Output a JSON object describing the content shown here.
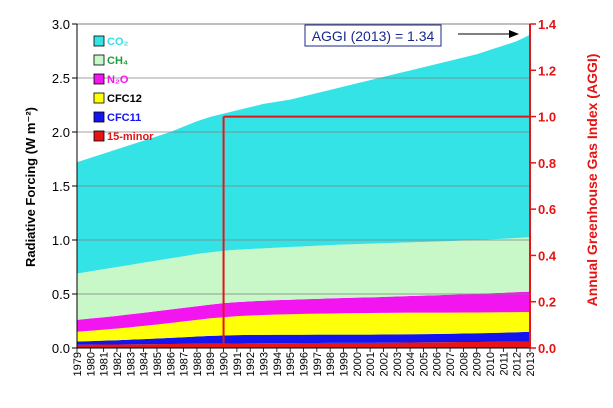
{
  "chart_data": {
    "type": "area",
    "stacked": true,
    "xlabel": "",
    "ylabel": "Radiative Forcing (W m⁻²)",
    "ylabel_right": "Annual Greenhouse Gas Index (AGGI)",
    "ylim": [
      0,
      3.0
    ],
    "ylim_right": [
      0,
      1.4
    ],
    "yticks": [
      "0.0",
      "0.5",
      "1.0",
      "1.5",
      "2.0",
      "2.5",
      "3.0"
    ],
    "yticks_right": [
      "0.0",
      "0.2",
      "0.4",
      "0.6",
      "0.8",
      "1.0",
      "1.2",
      "1.4"
    ],
    "categories": [
      "1979",
      "1980",
      "1981",
      "1982",
      "1983",
      "1984",
      "1985",
      "1986",
      "1987",
      "1988",
      "1989",
      "1990",
      "1991",
      "1992",
      "1993",
      "1994",
      "1995",
      "1996",
      "1997",
      "1998",
      "1999",
      "2000",
      "2001",
      "2002",
      "2003",
      "2004",
      "2005",
      "2006",
      "2007",
      "2008",
      "2009",
      "2010",
      "2011",
      "2012",
      "2013"
    ],
    "cumulative_tops": {
      "15-minor": [
        0.03,
        0.031,
        0.032,
        0.033,
        0.034,
        0.035,
        0.036,
        0.037,
        0.038,
        0.039,
        0.04,
        0.041,
        0.042,
        0.043,
        0.044,
        0.045,
        0.045,
        0.046,
        0.046,
        0.047,
        0.047,
        0.048,
        0.048,
        0.049,
        0.05,
        0.051,
        0.052,
        0.053,
        0.054,
        0.055,
        0.056,
        0.057,
        0.058,
        0.059,
        0.06
      ],
      "CFC11": [
        0.06,
        0.064,
        0.068,
        0.072,
        0.077,
        0.082,
        0.088,
        0.094,
        0.1,
        0.106,
        0.112,
        0.116,
        0.119,
        0.121,
        0.122,
        0.123,
        0.123,
        0.123,
        0.124,
        0.124,
        0.124,
        0.124,
        0.124,
        0.125,
        0.126,
        0.127,
        0.128,
        0.13,
        0.132,
        0.134,
        0.136,
        0.139,
        0.142,
        0.146,
        0.15
      ],
      "CFC12": [
        0.15,
        0.16,
        0.17,
        0.18,
        0.192,
        0.205,
        0.218,
        0.232,
        0.246,
        0.26,
        0.275,
        0.285,
        0.295,
        0.301,
        0.306,
        0.31,
        0.313,
        0.316,
        0.318,
        0.32,
        0.322,
        0.323,
        0.324,
        0.325,
        0.326,
        0.327,
        0.327,
        0.328,
        0.328,
        0.329,
        0.329,
        0.33,
        0.331,
        0.332,
        0.333
      ],
      "N2O": [
        0.26,
        0.273,
        0.285,
        0.298,
        0.312,
        0.326,
        0.341,
        0.356,
        0.371,
        0.386,
        0.402,
        0.415,
        0.425,
        0.432,
        0.438,
        0.443,
        0.447,
        0.451,
        0.455,
        0.459,
        0.463,
        0.466,
        0.469,
        0.473,
        0.477,
        0.481,
        0.485,
        0.489,
        0.493,
        0.497,
        0.502,
        0.507,
        0.512,
        0.517,
        0.522
      ],
      "CH4": [
        0.69,
        0.71,
        0.73,
        0.75,
        0.77,
        0.79,
        0.81,
        0.83,
        0.85,
        0.87,
        0.885,
        0.9,
        0.91,
        0.917,
        0.923,
        0.929,
        0.935,
        0.941,
        0.947,
        0.953,
        0.958,
        0.962,
        0.966,
        0.97,
        0.974,
        0.978,
        0.982,
        0.986,
        0.99,
        0.995,
        1.0,
        1.006,
        1.012,
        1.018,
        1.025
      ],
      "CO2": [
        1.72,
        1.76,
        1.8,
        1.84,
        1.88,
        1.92,
        1.96,
        2.0,
        2.05,
        2.1,
        2.14,
        2.17,
        2.2,
        2.23,
        2.26,
        2.28,
        2.3,
        2.33,
        2.36,
        2.39,
        2.42,
        2.45,
        2.48,
        2.51,
        2.54,
        2.57,
        2.6,
        2.63,
        2.66,
        2.69,
        2.72,
        2.76,
        2.8,
        2.84,
        2.9
      ]
    },
    "series": [
      {
        "name": "CO₂",
        "key": "CO2",
        "color": "#33E3E6"
      },
      {
        "name": "CH₄",
        "key": "CH4",
        "color": "#C8F7C8"
      },
      {
        "name": "N₂O",
        "key": "N2O",
        "color": "#F315F0"
      },
      {
        "name": "CFC12",
        "key": "CFC12",
        "color": "#FFFF0A"
      },
      {
        "name": "CFC11",
        "key": "CFC11",
        "color": "#1414F0"
      },
      {
        "name": "15-minor",
        "key": "15-minor",
        "color": "#E61414"
      }
    ],
    "legend": {
      "entries": [
        {
          "label": "CO₂",
          "swatch": "#33E3E6",
          "text_color": "#33E3E6"
        },
        {
          "label": "CH₄",
          "swatch": "#C8F7C8",
          "text_color": "#1F9E3F"
        },
        {
          "label": "N₂O",
          "swatch": "#F315F0",
          "text_color": "#F315F0"
        },
        {
          "label": "CFC12",
          "swatch": "#FFFF0A",
          "text_color": "#000000"
        },
        {
          "label": "CFC11",
          "swatch": "#1414F0",
          "text_color": "#1414F0"
        },
        {
          "label": "15-minor",
          "swatch": "#E61414",
          "text_color": "#E61414"
        }
      ],
      "placement": "top-left"
    },
    "reference_lines": [
      {
        "axis": "right",
        "value": 1.0,
        "color": "#E61414",
        "from": "1990",
        "to": "2013"
      },
      {
        "axis": "x",
        "value": "1990",
        "color": "#E61414",
        "from": 0,
        "to": 1.0
      }
    ],
    "annotation": {
      "text": "AGGI (2013) = 1.34",
      "points_to_year": "2013",
      "color": "#1A2A8C"
    },
    "colors": {
      "left_axis": "#000000",
      "right_axis": "#E61414",
      "gridline": "#808080"
    }
  }
}
